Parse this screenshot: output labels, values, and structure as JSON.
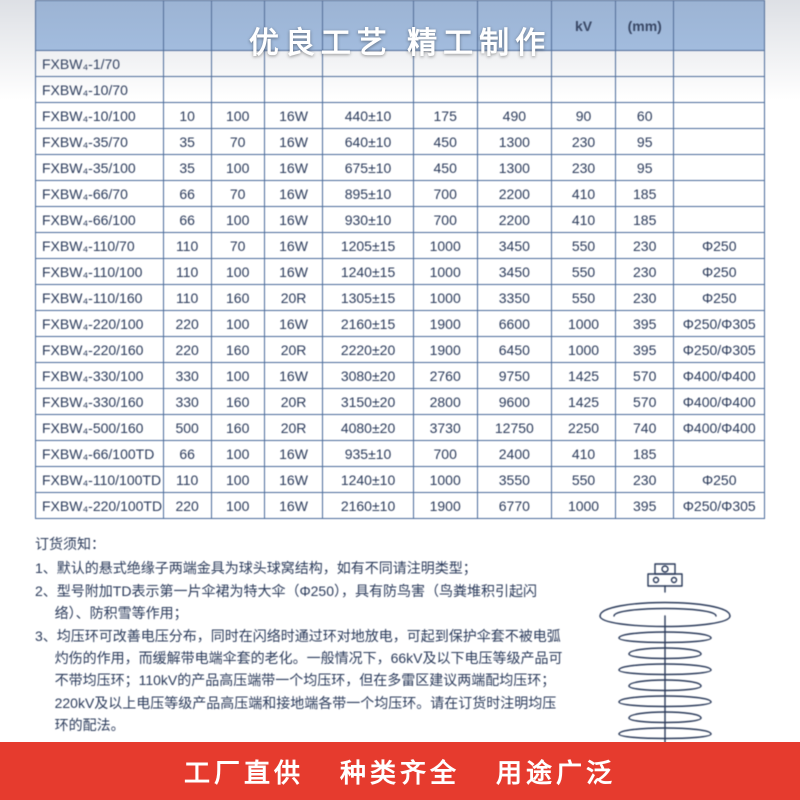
{
  "top_banner": "优良工艺  精工制作",
  "bottom_banner": {
    "a": "工厂直供",
    "b": "种类齐全",
    "c": "用途广泛"
  },
  "table": {
    "header_bg": "#a8c4e8",
    "border_color": "#4a6a9a",
    "text_color": "#2a3a5a",
    "columns": [
      {
        "key": "model",
        "label": "",
        "class": "model-col"
      },
      {
        "key": "kv",
        "label": "",
        "class": "kv-col"
      },
      {
        "key": "kn",
        "label": "",
        "class": "kn-col"
      },
      {
        "key": "w",
        "label": "",
        "class": "w-col"
      },
      {
        "key": "h",
        "label": "",
        "class": "h-col"
      },
      {
        "key": "d1",
        "label": "",
        "class": "d1-col"
      },
      {
        "key": "d2",
        "label": "",
        "class": "d2-col"
      },
      {
        "key": "c",
        "label": "kV",
        "class": "c-col"
      },
      {
        "key": "e",
        "label": "(mm)",
        "class": "e-col"
      },
      {
        "key": "ring",
        "label": "",
        "class": "ring-col"
      }
    ],
    "rows": [
      {
        "model": "FXBW₄-1/70",
        "kv": "",
        "kn": "",
        "w": "",
        "h": "",
        "d1": "",
        "d2": "",
        "c": "",
        "e": "",
        "ring": ""
      },
      {
        "model": "FXBW₄-10/70",
        "kv": "",
        "kn": "",
        "w": "",
        "h": "",
        "d1": "",
        "d2": "",
        "c": "",
        "e": "",
        "ring": ""
      },
      {
        "model": "FXBW₄-10/100",
        "kv": "10",
        "kn": "100",
        "w": "16W",
        "h": "440±10",
        "d1": "175",
        "d2": "490",
        "c": "90",
        "e": "60",
        "ring": ""
      },
      {
        "model": "FXBW₄-35/70",
        "kv": "35",
        "kn": "70",
        "w": "16W",
        "h": "640±10",
        "d1": "450",
        "d2": "1300",
        "c": "230",
        "e": "95",
        "ring": ""
      },
      {
        "model": "FXBW₄-35/100",
        "kv": "35",
        "kn": "100",
        "w": "16W",
        "h": "675±10",
        "d1": "450",
        "d2": "1300",
        "c": "230",
        "e": "95",
        "ring": ""
      },
      {
        "model": "FXBW₄-66/70",
        "kv": "66",
        "kn": "70",
        "w": "16W",
        "h": "895±10",
        "d1": "700",
        "d2": "2200",
        "c": "410",
        "e": "185",
        "ring": ""
      },
      {
        "model": "FXBW₄-66/100",
        "kv": "66",
        "kn": "100",
        "w": "16W",
        "h": "930±10",
        "d1": "700",
        "d2": "2200",
        "c": "410",
        "e": "185",
        "ring": ""
      },
      {
        "model": "FXBW₄-110/70",
        "kv": "110",
        "kn": "70",
        "w": "16W",
        "h": "1205±15",
        "d1": "1000",
        "d2": "3450",
        "c": "550",
        "e": "230",
        "ring": "Φ250"
      },
      {
        "model": "FXBW₄-110/100",
        "kv": "110",
        "kn": "100",
        "w": "16W",
        "h": "1240±15",
        "d1": "1000",
        "d2": "3450",
        "c": "550",
        "e": "230",
        "ring": "Φ250"
      },
      {
        "model": "FXBW₄-110/160",
        "kv": "110",
        "kn": "160",
        "w": "20R",
        "h": "1305±15",
        "d1": "1000",
        "d2": "3350",
        "c": "550",
        "e": "230",
        "ring": "Φ250"
      },
      {
        "model": "FXBW₄-220/100",
        "kv": "220",
        "kn": "100",
        "w": "16W",
        "h": "2160±15",
        "d1": "1900",
        "d2": "6600",
        "c": "1000",
        "e": "395",
        "ring": "Φ250/Φ305"
      },
      {
        "model": "FXBW₄-220/160",
        "kv": "220",
        "kn": "160",
        "w": "20R",
        "h": "2220±20",
        "d1": "1900",
        "d2": "6450",
        "c": "1000",
        "e": "395",
        "ring": "Φ250/Φ305"
      },
      {
        "model": "FXBW₄-330/100",
        "kv": "330",
        "kn": "100",
        "w": "16W",
        "h": "3080±20",
        "d1": "2760",
        "d2": "9750",
        "c": "1425",
        "e": "570",
        "ring": "Φ400/Φ400"
      },
      {
        "model": "FXBW₄-330/160",
        "kv": "330",
        "kn": "160",
        "w": "20R",
        "h": "3150±20",
        "d1": "2800",
        "d2": "9600",
        "c": "1425",
        "e": "570",
        "ring": "Φ400/Φ400"
      },
      {
        "model": "FXBW₄-500/160",
        "kv": "500",
        "kn": "160",
        "w": "20R",
        "h": "4080±20",
        "d1": "3730",
        "d2": "12750",
        "c": "2250",
        "e": "740",
        "ring": "Φ400/Φ400"
      },
      {
        "model": "FXBW₄-66/100TD",
        "kv": "66",
        "kn": "100",
        "w": "16W",
        "h": "935±10",
        "d1": "700",
        "d2": "2400",
        "c": "410",
        "e": "185",
        "ring": ""
      },
      {
        "model": "FXBW₄-110/100TD",
        "kv": "110",
        "kn": "100",
        "w": "16W",
        "h": "1240±10",
        "d1": "1000",
        "d2": "3550",
        "c": "550",
        "e": "230",
        "ring": "Φ250"
      },
      {
        "model": "FXBW₄-220/100TD",
        "kv": "220",
        "kn": "100",
        "w": "16W",
        "h": "2160±10",
        "d1": "1900",
        "d2": "6770",
        "c": "1000",
        "e": "395",
        "ring": "Φ250/Φ305"
      }
    ]
  },
  "notes": {
    "title": "订货须知：",
    "items": [
      "1、默认的悬式绝缘子两端金具为球头球窝结构，如有不同请注明类型；",
      "2、型号附加TD表示第一片伞裙为特大伞（Φ250），具有防鸟害（鸟粪堆积引起闪络）、防积雪等作用；",
      "3、均压环可改善电压分布，同时在闪络时通过环对地放电，可起到保护伞套不被电弧灼伤的作用，而缓解带电端伞套的老化。一般情况下，66kV及以下电压等级产品可不带均压环；110kV的产品高压端带一个均压环，但在多雷区建议两端配均压环；220kV及以上电压等级产品高压端和接地端各带一个均压环。请在订货时注明均压环的配法。"
    ]
  },
  "diagram": {
    "stroke": "#2a3a5a",
    "stroke_width": 1.4
  }
}
